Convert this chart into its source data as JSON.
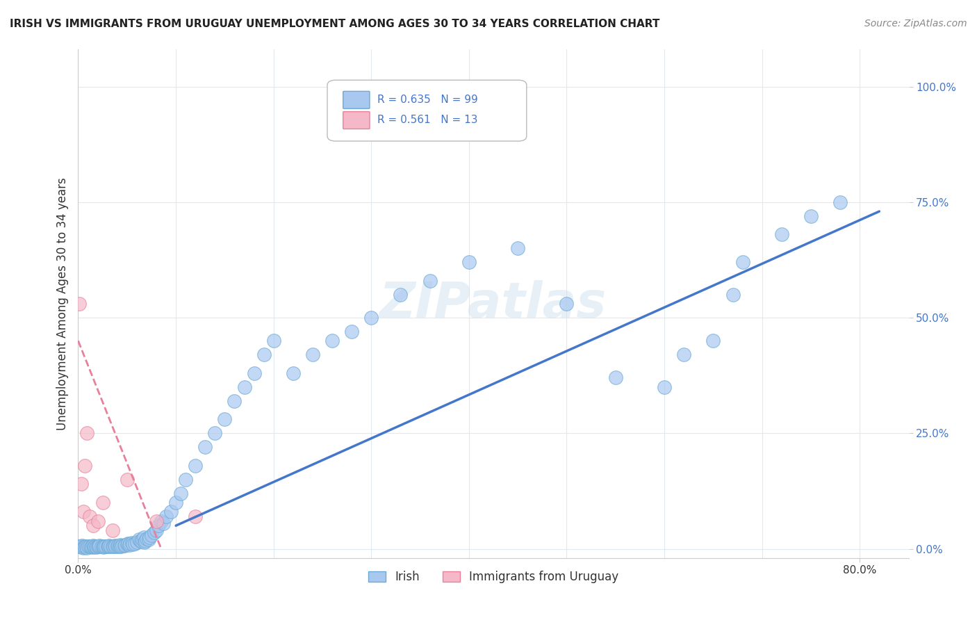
{
  "title": "IRISH VS IMMIGRANTS FROM URUGUAY UNEMPLOYMENT AMONG AGES 30 TO 34 YEARS CORRELATION CHART",
  "source": "Source: ZipAtlas.com",
  "xlabel_bottom": "",
  "ylabel": "Unemployment Among Ages 30 to 34 years",
  "x_ticks": [
    0.0,
    0.1,
    0.2,
    0.3,
    0.4,
    0.5,
    0.6,
    0.7,
    0.8
  ],
  "x_tick_labels": [
    "0.0%",
    "",
    "",
    "",
    "",
    "",
    "",
    "",
    "80.0%"
  ],
  "y_ticks": [
    0.0,
    0.25,
    0.5,
    0.75,
    1.0
  ],
  "y_tick_labels": [
    "0.0%",
    "25.0%",
    "50.0%",
    "75.0%",
    "100.0%"
  ],
  "xlim": [
    0.0,
    0.85
  ],
  "ylim": [
    -0.02,
    1.08
  ],
  "irish_color": "#a8c8f0",
  "irish_edge_color": "#6aaad4",
  "uruguay_color": "#f5b8c8",
  "uruguay_edge_color": "#e8809a",
  "trend_irish_color": "#4477cc",
  "trend_uruguay_color": "#e8809a",
  "legend_irish_label": "Irish",
  "legend_uruguay_label": "Immigrants from Uruguay",
  "irish_R": 0.635,
  "irish_N": 99,
  "uruguay_R": 0.561,
  "uruguay_N": 13,
  "watermark": "ZIPatlas",
  "background_color": "#ffffff",
  "grid_color": "#e0e8f0",
  "irish_scatter_x": [
    0.001,
    0.002,
    0.003,
    0.004,
    0.005,
    0.006,
    0.007,
    0.008,
    0.009,
    0.01,
    0.012,
    0.013,
    0.014,
    0.015,
    0.016,
    0.017,
    0.018,
    0.019,
    0.02,
    0.021,
    0.022,
    0.024,
    0.025,
    0.026,
    0.027,
    0.028,
    0.03,
    0.031,
    0.032,
    0.033,
    0.035,
    0.036,
    0.037,
    0.038,
    0.04,
    0.041,
    0.042,
    0.043,
    0.044,
    0.045,
    0.047,
    0.048,
    0.05,
    0.051,
    0.052,
    0.053,
    0.055,
    0.056,
    0.058,
    0.06,
    0.062,
    0.064,
    0.065,
    0.066,
    0.067,
    0.068,
    0.069,
    0.07,
    0.072,
    0.073,
    0.075,
    0.078,
    0.08,
    0.082,
    0.085,
    0.087,
    0.09,
    0.095,
    0.1,
    0.105,
    0.11,
    0.12,
    0.13,
    0.14,
    0.15,
    0.16,
    0.17,
    0.18,
    0.19,
    0.2,
    0.22,
    0.24,
    0.26,
    0.28,
    0.3,
    0.33,
    0.36,
    0.4,
    0.45,
    0.5,
    0.55,
    0.6,
    0.62,
    0.65,
    0.67,
    0.68,
    0.72,
    0.75,
    0.78
  ],
  "irish_scatter_y": [
    0.005,
    0.006,
    0.004,
    0.007,
    0.003,
    0.005,
    0.004,
    0.006,
    0.003,
    0.005,
    0.006,
    0.004,
    0.005,
    0.007,
    0.004,
    0.005,
    0.006,
    0.004,
    0.005,
    0.006,
    0.007,
    0.005,
    0.006,
    0.004,
    0.005,
    0.006,
    0.005,
    0.006,
    0.007,
    0.005,
    0.006,
    0.005,
    0.007,
    0.006,
    0.005,
    0.007,
    0.006,
    0.008,
    0.006,
    0.007,
    0.007,
    0.008,
    0.01,
    0.012,
    0.009,
    0.011,
    0.013,
    0.01,
    0.012,
    0.015,
    0.02,
    0.018,
    0.016,
    0.02,
    0.025,
    0.015,
    0.018,
    0.022,
    0.02,
    0.025,
    0.03,
    0.035,
    0.04,
    0.05,
    0.06,
    0.055,
    0.07,
    0.08,
    0.1,
    0.12,
    0.15,
    0.18,
    0.22,
    0.25,
    0.28,
    0.32,
    0.35,
    0.38,
    0.42,
    0.45,
    0.38,
    0.42,
    0.45,
    0.47,
    0.5,
    0.55,
    0.58,
    0.62,
    0.65,
    0.53,
    0.37,
    0.35,
    0.42,
    0.45,
    0.55,
    0.62,
    0.68,
    0.72,
    0.75
  ],
  "uruguay_scatter_x": [
    0.001,
    0.003,
    0.005,
    0.007,
    0.009,
    0.012,
    0.015,
    0.02,
    0.025,
    0.035,
    0.05,
    0.08,
    0.12
  ],
  "uruguay_scatter_y": [
    0.53,
    0.14,
    0.08,
    0.18,
    0.25,
    0.07,
    0.05,
    0.06,
    0.1,
    0.04,
    0.15,
    0.06,
    0.07
  ],
  "irish_trend_x0": 0.1,
  "irish_trend_x1": 0.82,
  "irish_trend_y0": 0.05,
  "irish_trend_y1": 0.73,
  "uruguay_trend_x0": 0.0,
  "uruguay_trend_x1": 0.085,
  "uruguay_trend_y0": 0.45,
  "uruguay_trend_y1": 0.0
}
